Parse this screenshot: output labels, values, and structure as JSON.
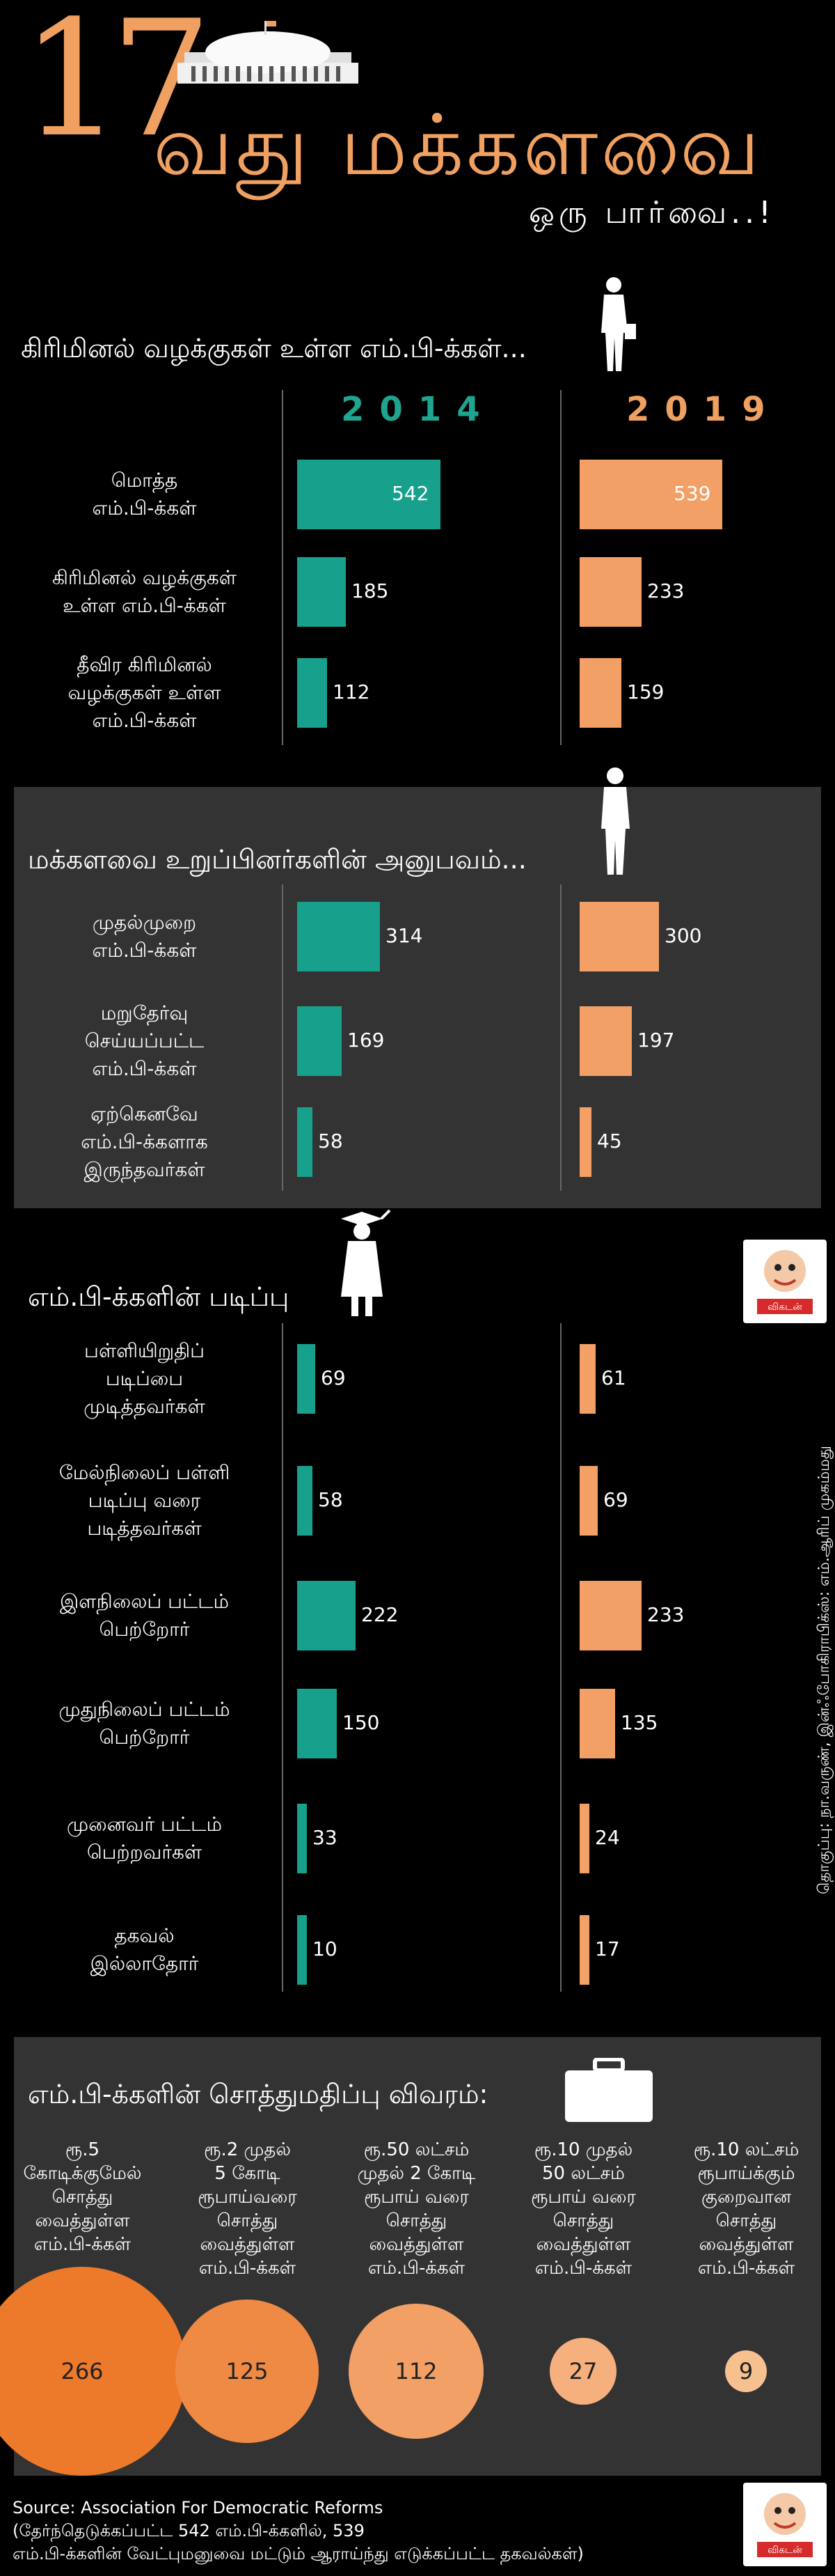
{
  "header": {
    "number": "17",
    "title": "வது மக்களவை",
    "subtitle": "ஒரு பார்வை..!"
  },
  "years": [
    "2014",
    "2019"
  ],
  "colors": {
    "y2014": "#17a08c",
    "y2019": "#f2a066",
    "panel": "#333333"
  },
  "icons": [
    "parliament-building-icon",
    "standing-man-icon",
    "walking-man-icon",
    "graduate-icon",
    "briefcase-icon",
    "vikatan-logo-icon"
  ],
  "chart_data": [
    {
      "type": "bar",
      "title": "கிரிமினல் வழக்குகள் உள்ள எம்.பி-க்கள்...",
      "categories": [
        "மொத்த எம்.பி-க்கள்",
        "கிரிமினல் வழக்குகள் உள்ள எம்.பி-க்கள்",
        "தீவிர கிரிமினல் வழக்குகள் உள்ள எம்.பி-க்கள்"
      ],
      "series": [
        {
          "name": "2014",
          "values": [
            542,
            185,
            112
          ]
        },
        {
          "name": "2019",
          "values": [
            539,
            233,
            159
          ]
        }
      ]
    },
    {
      "type": "bar",
      "title": "மக்களவை உறுப்பினர்களின் அனுபவம்...",
      "categories": [
        "முதல்முறை எம்.பி-க்கள்",
        "மறுதேர்வு செய்யப்பட்ட எம்.பி-க்கள்",
        "ஏற்கெனவே எம்.பி-க்களாக இருந்தவர்கள்"
      ],
      "series": [
        {
          "name": "2014",
          "values": [
            314,
            169,
            58
          ]
        },
        {
          "name": "2019",
          "values": [
            300,
            197,
            45
          ]
        }
      ]
    },
    {
      "type": "bar",
      "title": "எம்.பி-க்களின் படிப்பு",
      "categories": [
        "பள்ளியிறுதிப் படிப்பை முடித்தவர்கள்",
        "மேல்நிலைப் பள்ளி படிப்பு வரை படித்தவர்கள்",
        "இளநிலைப் பட்டம் பெற்றோர்",
        "முதுநிலைப் பட்டம் பெற்றோர்",
        "முனைவர் பட்டம் பெற்றவர்கள்",
        "தகவல் இல்லாதோர்"
      ],
      "series": [
        {
          "name": "2014",
          "values": [
            69,
            58,
            222,
            150,
            33,
            10
          ]
        },
        {
          "name": "2019",
          "values": [
            61,
            69,
            233,
            135,
            24,
            17
          ]
        }
      ]
    },
    {
      "type": "bubble",
      "title": "எம்.பி-க்களின் சொத்துமதிப்பு விவரம்:",
      "categories": [
        "ரூ.5 கோடிக்குமேல் சொத்து வைத்துள்ள எம்.பி-க்கள்",
        "ரூ.2 முதல் 5 கோடி ரூபாய்வரை சொத்து வைத்துள்ள எம்.பி-க்கள்",
        "ரூ.50 லட்சம் முதல் 2 கோடி ரூபாய் வரை சொத்து வைத்துள்ள எம்.பி-க்கள்",
        "ரூ.10 முதல் 50 லட்சம் ரூபாய் வரை சொத்து வைத்துள்ள எம்.பி-க்கள்",
        "ரூ.10 லட்சம் ரூபாய்க்கும் குறைவான சொத்து வைத்துள்ள எம்.பி-க்கள்"
      ],
      "values": [
        266,
        125,
        112,
        27,
        9
      ],
      "colors": [
        "#ec7a2a",
        "#ef8a45",
        "#f2a066",
        "#f5b07e",
        "#f7c08f"
      ]
    }
  ],
  "labels": {
    "s1": [
      "மொத்த|எம்.பி-க்கள்",
      "கிரிமினல் வழக்குகள்|உள்ள எம்.பி-க்கள்",
      "தீவிர கிரிமினல்|வழக்குகள் உள்ள|எம்.பி-க்கள்"
    ],
    "s2": [
      "முதல்முறை|எம்.பி-க்கள்",
      "மறுதேர்வு|செய்யப்பட்ட|எம்.பி-க்கள்",
      "ஏற்கெனவே|எம்.பி-க்களாக|இருந்தவர்கள்"
    ],
    "s3": [
      "பள்ளியிறுதிப்|படிப்பை|முடித்தவர்கள்",
      "மேல்நிலைப் பள்ளி|படிப்பு வரை|படித்தவர்கள்",
      "இளநிலைப் பட்டம்|பெற்றோர்",
      "முதுநிலைப் பட்டம்|பெற்றோர்",
      "முனைவர் பட்டம்|பெற்றவர்கள்",
      "தகவல்|இல்லாதோர்"
    ],
    "s4": [
      "ரூ.5|கோடிக்குமேல்|சொத்து|வைத்துள்ள|எம்.பி-க்கள்",
      "ரூ.2 முதல்|5 கோடி|ரூபாய்வரை|சொத்து|வைத்துள்ள|எம்.பி-க்கள்",
      "ரூ.50 லட்சம்|முதல் 2 கோடி|ரூபாய் வரை|சொத்து|வைத்துள்ள|எம்.பி-க்கள்",
      "ரூ.10 முதல்|50 லட்சம்|ரூபாய் வரை|சொத்து|வைத்துள்ள|எம்.பி-க்கள்",
      "ரூ.10 லட்சம்|ரூபாய்க்கும்|குறைவான|சொத்து|வைத்துள்ள|எம்.பி-க்கள்"
    ]
  },
  "logo": {
    "name": "விகடன்"
  },
  "credit": "தொகுப்பு: நா.வருண், இன்ஃபோகிராபிக்ஸ்: எம்.ஆரிப் முகம்மது",
  "source": {
    "line1": "Source: Association For Democratic Reforms",
    "line2": "(தேர்ந்தெடுக்கப்பட்ட 542 எம்.பி-க்களில், 539",
    "line3": "எம்.பி-க்களின் வேட்புமனுவை மட்டும் ஆராய்ந்து எடுக்கப்பட்ட தகவல்கள்)"
  }
}
